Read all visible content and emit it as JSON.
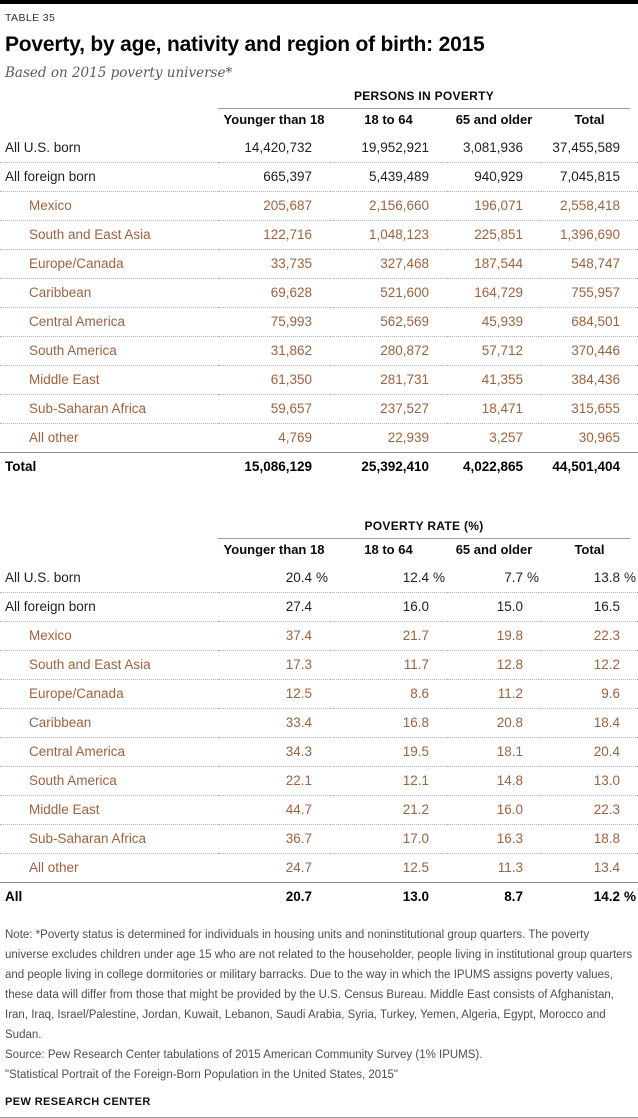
{
  "page": {
    "table_label": "TABLE 35",
    "title": "Poverty, by age, nativity and region of birth: 2015",
    "subtitle": "Based on 2015 poverty universe*",
    "percent_sign": "%"
  },
  "colors": {
    "accent_row_text": "#9b6342",
    "dark_text": "#1f1f1f",
    "rule_gray": "#9b9b9b",
    "top_bar": "#000000",
    "note_gray": "#4e4e4e"
  },
  "chart_data": [
    {
      "type": "table",
      "title": "PERSONS IN POVERTY",
      "columns": [
        "Younger than 18",
        "18 to 64",
        "65 and older",
        "Total"
      ],
      "rows": [
        {
          "label": "All U.S. born",
          "indent": false,
          "total": false,
          "values": [
            "14,420,732",
            "19,952,921",
            "3,081,936",
            "37,455,589"
          ]
        },
        {
          "label": "All foreign born",
          "indent": false,
          "total": false,
          "values": [
            "665,397",
            "5,439,489",
            "940,929",
            "7,045,815"
          ]
        },
        {
          "label": "Mexico",
          "indent": true,
          "total": false,
          "values": [
            "205,687",
            "2,156,660",
            "196,071",
            "2,558,418"
          ]
        },
        {
          "label": "South and East Asia",
          "indent": true,
          "total": false,
          "values": [
            "122,716",
            "1,048,123",
            "225,851",
            "1,396,690"
          ]
        },
        {
          "label": "Europe/Canada",
          "indent": true,
          "total": false,
          "values": [
            "33,735",
            "327,468",
            "187,544",
            "548,747"
          ]
        },
        {
          "label": "Caribbean",
          "indent": true,
          "total": false,
          "values": [
            "69,628",
            "521,600",
            "164,729",
            "755,957"
          ]
        },
        {
          "label": "Central America",
          "indent": true,
          "total": false,
          "values": [
            "75,993",
            "562,569",
            "45,939",
            "684,501"
          ]
        },
        {
          "label": "South America",
          "indent": true,
          "total": false,
          "values": [
            "31,862",
            "280,872",
            "57,712",
            "370,446"
          ]
        },
        {
          "label": "Middle East",
          "indent": true,
          "total": false,
          "values": [
            "61,350",
            "281,731",
            "41,355",
            "384,436"
          ]
        },
        {
          "label": "Sub-Saharan Africa",
          "indent": true,
          "total": false,
          "values": [
            "59,657",
            "237,527",
            "18,471",
            "315,655"
          ]
        },
        {
          "label": "All other",
          "indent": true,
          "total": false,
          "values": [
            "4,769",
            "22,939",
            "3,257",
            "30,965"
          ]
        },
        {
          "label": "Total",
          "indent": false,
          "total": true,
          "values": [
            "15,086,129",
            "25,392,410",
            "4,022,865",
            "44,501,404"
          ]
        }
      ]
    },
    {
      "type": "table",
      "title": "POVERTY RATE (%)",
      "columns": [
        "Younger than 18",
        "18 to 64",
        "65 and older",
        "Total"
      ],
      "rows": [
        {
          "label": "All U.S. born",
          "indent": false,
          "total": false,
          "values": [
            "20.4",
            "12.4",
            "7.7",
            "13.8"
          ],
          "pct": [
            true,
            true,
            true,
            true
          ]
        },
        {
          "label": "All foreign born",
          "indent": false,
          "total": false,
          "values": [
            "27.4",
            "16.0",
            "15.0",
            "16.5"
          ]
        },
        {
          "label": "Mexico",
          "indent": true,
          "total": false,
          "values": [
            "37.4",
            "21.7",
            "19.8",
            "22.3"
          ]
        },
        {
          "label": "South and East Asia",
          "indent": true,
          "total": false,
          "values": [
            "17.3",
            "11.7",
            "12.8",
            "12.2"
          ]
        },
        {
          "label": "Europe/Canada",
          "indent": true,
          "total": false,
          "values": [
            "12.5",
            "8.6",
            "11.2",
            "9.6"
          ]
        },
        {
          "label": "Caribbean",
          "indent": true,
          "total": false,
          "values": [
            "33.4",
            "16.8",
            "20.8",
            "18.4"
          ]
        },
        {
          "label": "Central America",
          "indent": true,
          "total": false,
          "values": [
            "34.3",
            "19.5",
            "18.1",
            "20.4"
          ]
        },
        {
          "label": "South America",
          "indent": true,
          "total": false,
          "values": [
            "22.1",
            "12.1",
            "14.8",
            "13.0"
          ]
        },
        {
          "label": "Middle East",
          "indent": true,
          "total": false,
          "values": [
            "44.7",
            "21.2",
            "16.0",
            "22.3"
          ]
        },
        {
          "label": "Sub-Saharan Africa",
          "indent": true,
          "total": false,
          "values": [
            "36.7",
            "17.0",
            "16.3",
            "18.8"
          ]
        },
        {
          "label": "All other",
          "indent": true,
          "total": false,
          "values": [
            "24.7",
            "12.5",
            "11.3",
            "13.4"
          ]
        },
        {
          "label": "All",
          "indent": false,
          "total": true,
          "values": [
            "20.7",
            "13.0",
            "8.7",
            "14.2"
          ],
          "pct": [
            false,
            false,
            false,
            true
          ]
        }
      ]
    }
  ],
  "footer": {
    "note": "Note: *Poverty status is determined for individuals in housing units and noninstitutional group quarters. The poverty universe excludes children under age 15 who are not related to the householder, people living in institutional group quarters and people living in college dormitories or military barracks. Due to the way in which the IPUMS assigns poverty values, these data will differ from those that might be provided by the U.S. Census Bureau. Middle East consists of Afghanistan, Iran, Iraq, Israel/Palestine, Jordan, Kuwait, Lebanon, Saudi Arabia, Syria, Turkey, Yemen, Algeria, Egypt, Morocco and Sudan.",
    "source": "Source: Pew Research Center tabulations of 2015 American Community Survey (1% IPUMS).",
    "citation": "\"Statistical Portrait of the Foreign-Born Population in the United States, 2015\"",
    "brand": "PEW RESEARCH CENTER"
  }
}
